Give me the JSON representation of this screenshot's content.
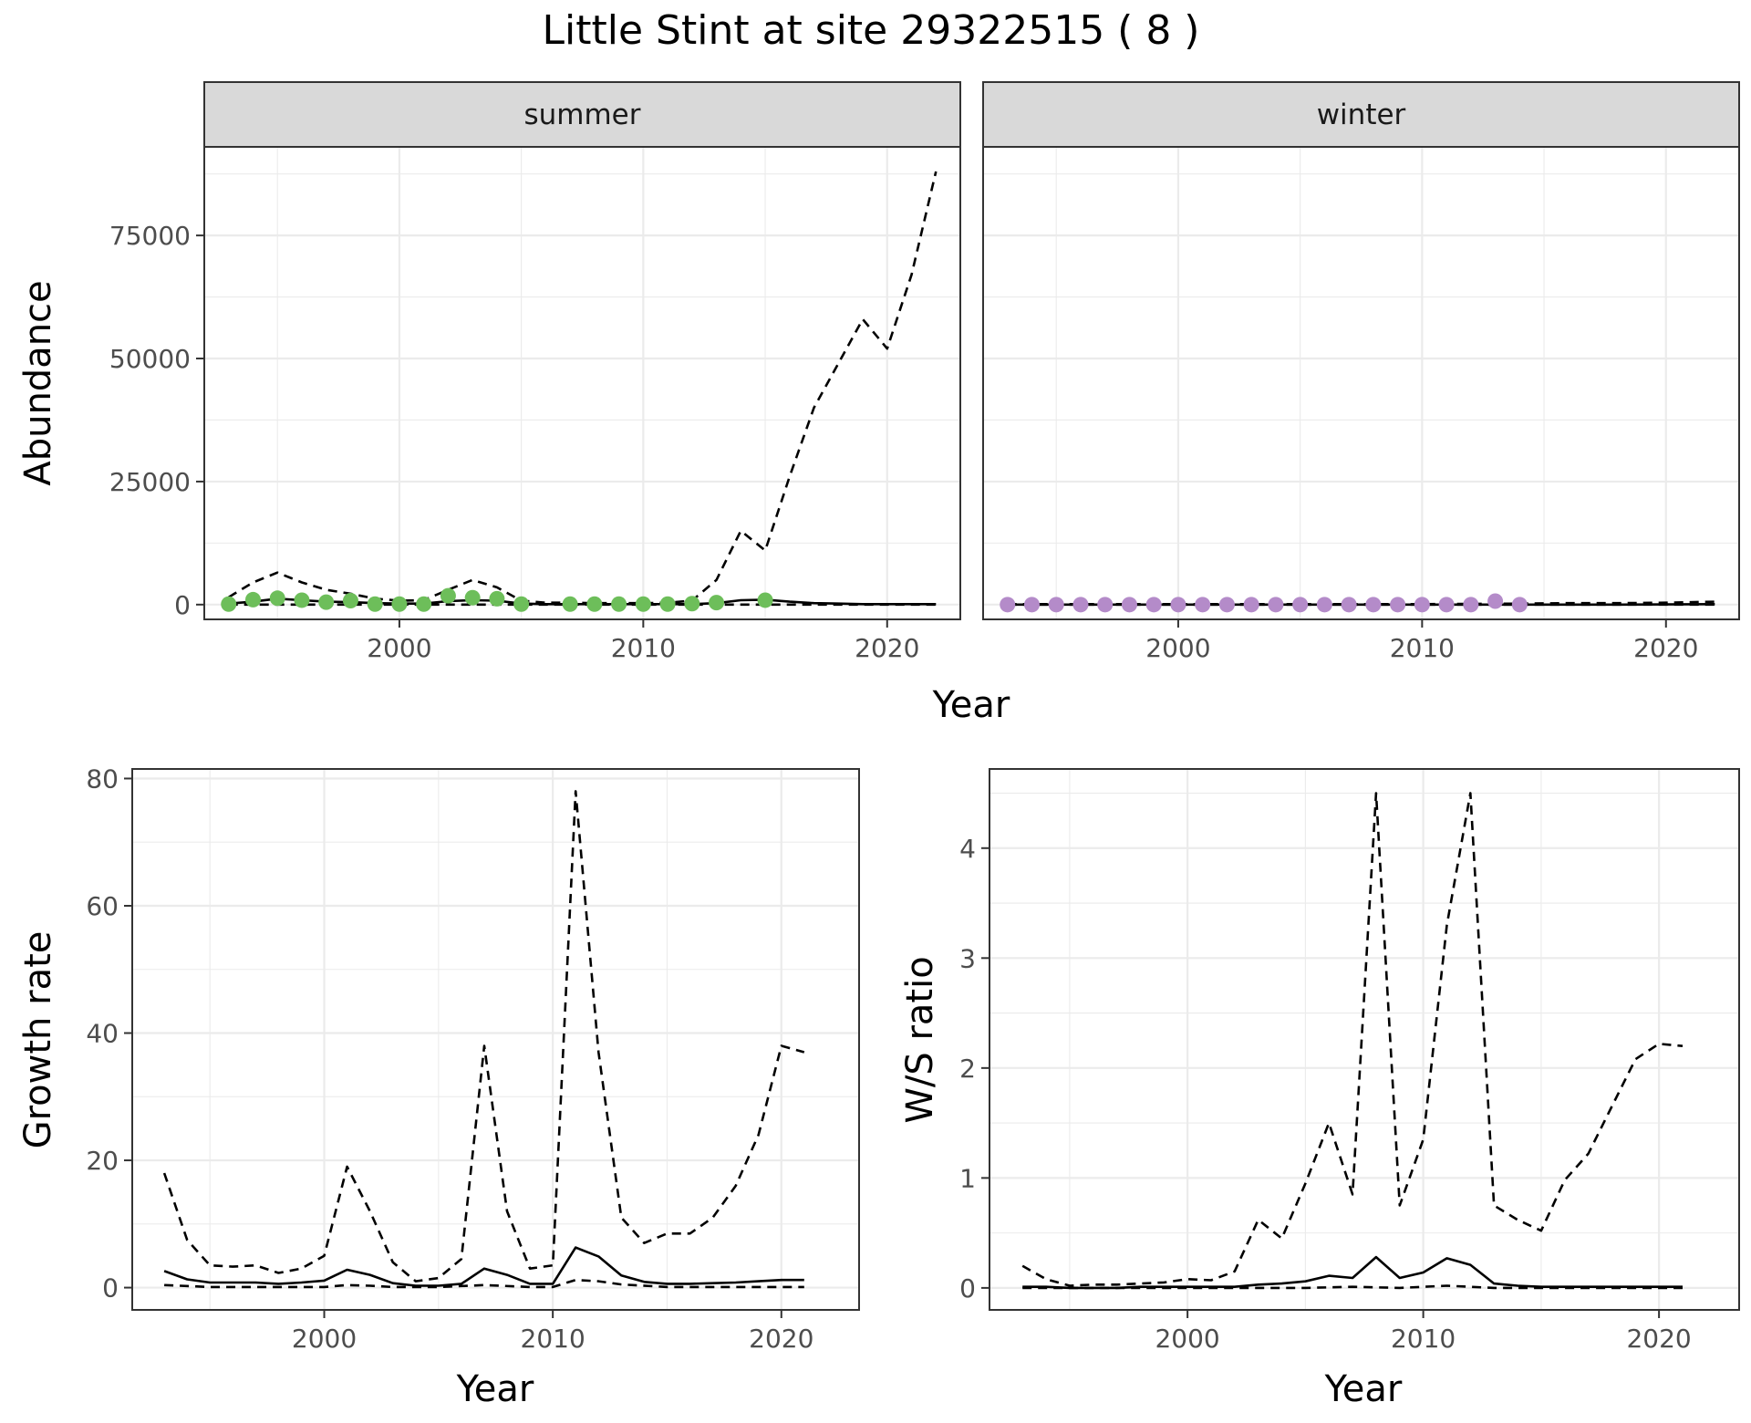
{
  "title": "Little Stint at site 29322515 ( 8 )",
  "colors": {
    "summer_points": "#6DBE5A",
    "winter_points": "#B48BC9",
    "lines": "#000000"
  },
  "chart_data": [
    {
      "id": "abundance",
      "type": "line",
      "facets": [
        "summer",
        "winter"
      ],
      "xlabel": "Year",
      "ylabel": "Abundance",
      "xlim": [
        1992,
        2023
      ],
      "ylim": [
        -3000,
        93000
      ],
      "x_ticks": [
        2000,
        2010,
        2020
      ],
      "x_tick_labels": [
        "2000",
        "2010",
        "2020"
      ],
      "y_ticks": [
        0,
        25000,
        50000,
        75000
      ],
      "y_tick_labels": [
        "0",
        "25000",
        "50000",
        "75000"
      ],
      "panels": {
        "summer": {
          "estimate": {
            "x": [
              1993,
              1994,
              1995,
              1996,
              1997,
              1998,
              1999,
              2000,
              2001,
              2002,
              2003,
              2004,
              2005,
              2006,
              2007,
              2008,
              2009,
              2010,
              2011,
              2012,
              2013,
              2014,
              2015,
              2016,
              2017,
              2018,
              2019,
              2020,
              2021,
              2022
            ],
            "y": [
              200,
              600,
              1200,
              900,
              600,
              500,
              300,
              200,
              200,
              700,
              900,
              800,
              200,
              100,
              100,
              100,
              100,
              100,
              100,
              100,
              300,
              900,
              1000,
              600,
              300,
              200,
              100,
              100,
              100,
              100
            ]
          },
          "upper": {
            "x": [
              1993,
              1994,
              1995,
              1996,
              1997,
              1998,
              1999,
              2000,
              2001,
              2002,
              2003,
              2004,
              2005,
              2006,
              2007,
              2008,
              2009,
              2010,
              2011,
              2012,
              2013,
              2014,
              2015,
              2016,
              2017,
              2018,
              2019,
              2020,
              2021,
              2022
            ],
            "y": [
              1500,
              4500,
              6500,
              4500,
              3000,
              2200,
              1200,
              800,
              900,
              3000,
              5000,
              3500,
              800,
              400,
              400,
              300,
              300,
              300,
              400,
              800,
              5000,
              15000,
              11000,
              26000,
              40000,
              49000,
              58000,
              52000,
              67000,
              88000
            ]
          },
          "lower": {
            "x": [
              1993,
              1998,
              2003,
              2008,
              2013,
              2018,
              2022
            ],
            "y": [
              0,
              0,
              0,
              0,
              0,
              0,
              0
            ]
          },
          "observed": {
            "x": [
              1993,
              1994,
              1995,
              1996,
              1997,
              1998,
              1999,
              2000,
              2001,
              2002,
              2003,
              2004,
              2005,
              2007,
              2008,
              2009,
              2010,
              2011,
              2012,
              2013,
              2015
            ],
            "y": [
              100,
              1000,
              1300,
              900,
              500,
              800,
              100,
              100,
              100,
              1800,
              1400,
              1200,
              100,
              100,
              100,
              100,
              100,
              100,
              200,
              400,
              900
            ]
          }
        },
        "winter": {
          "estimate": {
            "x": [
              1993,
              1998,
              2003,
              2008,
              2013,
              2018,
              2022
            ],
            "y": [
              0,
              0,
              0,
              0,
              0,
              0,
              100
            ]
          },
          "upper": {
            "x": [
              1993,
              2000,
              2005,
              2010,
              2014,
              2016,
              2018,
              2020,
              2022
            ],
            "y": [
              100,
              100,
              100,
              100,
              200,
              300,
              300,
              400,
              600
            ]
          },
          "lower": {
            "x": [
              1993,
              2022
            ],
            "y": [
              0,
              0
            ]
          },
          "observed": {
            "x": [
              1993,
              1994,
              1995,
              1996,
              1997,
              1998,
              1999,
              2000,
              2001,
              2002,
              2003,
              2004,
              2005,
              2006,
              2007,
              2008,
              2009,
              2010,
              2011,
              2012,
              2013,
              2014
            ],
            "y": [
              0,
              0,
              0,
              0,
              0,
              0,
              0,
              0,
              0,
              0,
              0,
              0,
              0,
              0,
              0,
              0,
              0,
              0,
              0,
              0,
              700,
              0
            ]
          }
        }
      }
    },
    {
      "id": "growth",
      "type": "line",
      "xlabel": "Year",
      "ylabel": "Growth rate",
      "xlim": [
        1991.6,
        2023.4
      ],
      "ylim": [
        -3.5,
        81.5
      ],
      "x_ticks": [
        2000,
        2010,
        2020
      ],
      "x_tick_labels": [
        "2000",
        "2010",
        "2020"
      ],
      "y_ticks": [
        0,
        20,
        40,
        60,
        80
      ],
      "y_tick_labels": [
        "0",
        "20",
        "40",
        "60",
        "80"
      ],
      "estimate": {
        "x": [
          1993,
          1994,
          1995,
          1996,
          1997,
          1998,
          1999,
          2000,
          2001,
          2002,
          2003,
          2004,
          2005,
          2006,
          2007,
          2008,
          2009,
          2010,
          2011,
          2012,
          2013,
          2014,
          2015,
          2016,
          2017,
          2018,
          2019,
          2020,
          2021
        ],
        "y": [
          2.6,
          1.3,
          0.8,
          0.8,
          0.8,
          0.6,
          0.8,
          1.1,
          2.8,
          2.0,
          0.7,
          0.3,
          0.3,
          0.6,
          3.0,
          2.0,
          0.6,
          0.6,
          6.3,
          4.9,
          1.9,
          0.9,
          0.6,
          0.6,
          0.7,
          0.8,
          1.0,
          1.2,
          1.2
        ]
      },
      "upper": {
        "x": [
          1993,
          1994,
          1995,
          1996,
          1997,
          1998,
          1999,
          2000,
          2001,
          2002,
          2003,
          2004,
          2005,
          2006,
          2007,
          2008,
          2009,
          2010,
          2011,
          2012,
          2013,
          2014,
          2015,
          2016,
          2017,
          2018,
          2019,
          2020,
          2021
        ],
        "y": [
          18,
          7.5,
          3.5,
          3.3,
          3.5,
          2.3,
          3,
          5,
          19,
          12,
          4,
          1,
          1.5,
          4.5,
          38,
          12,
          3,
          3.5,
          78,
          37,
          11,
          7,
          8.5,
          8.5,
          11,
          16,
          24,
          38,
          37
        ]
      },
      "lower": {
        "x": [
          1993,
          1995,
          1997,
          1999,
          2000,
          2001,
          2002,
          2003,
          2005,
          2007,
          2009,
          2010,
          2011,
          2012,
          2013,
          2015,
          2017,
          2019,
          2021
        ],
        "y": [
          0.4,
          0.1,
          0.1,
          0.1,
          0.1,
          0.4,
          0.3,
          0.1,
          0.1,
          0.4,
          0.1,
          0.1,
          1.2,
          1.0,
          0.5,
          0.1,
          0.1,
          0.1,
          0.1
        ]
      }
    },
    {
      "id": "ws_ratio",
      "type": "line",
      "xlabel": "Year",
      "ylabel": "W/S ratio",
      "xlim": [
        1991.6,
        2023.4
      ],
      "ylim": [
        -0.2,
        4.72
      ],
      "x_ticks": [
        2000,
        2010,
        2020
      ],
      "x_tick_labels": [
        "2000",
        "2010",
        "2020"
      ],
      "y_ticks": [
        0,
        1,
        2,
        3,
        4
      ],
      "y_tick_labels": [
        "0",
        "1",
        "2",
        "3",
        "4"
      ],
      "estimate": {
        "x": [
          1993,
          1994,
          1995,
          1996,
          1997,
          1998,
          1999,
          2000,
          2001,
          2002,
          2003,
          2004,
          2005,
          2006,
          2007,
          2008,
          2009,
          2010,
          2011,
          2012,
          2013,
          2014,
          2015,
          2016,
          2017,
          2018,
          2019,
          2020,
          2021
        ],
        "y": [
          0.01,
          0.01,
          0.0,
          0.0,
          0.0,
          0.01,
          0.01,
          0.01,
          0.01,
          0.01,
          0.03,
          0.04,
          0.06,
          0.11,
          0.09,
          0.28,
          0.09,
          0.14,
          0.27,
          0.21,
          0.04,
          0.02,
          0.01,
          0.01,
          0.01,
          0.01,
          0.01,
          0.01,
          0.01
        ]
      },
      "upper": {
        "x": [
          1993,
          1994,
          1995,
          1996,
          1997,
          1998,
          1999,
          2000,
          2001,
          2002,
          2003,
          2004,
          2005,
          2006,
          2007,
          2008,
          2009,
          2010,
          2011,
          2012,
          2013,
          2014,
          2015,
          2016,
          2017,
          2018,
          2019,
          2020,
          2021
        ],
        "y": [
          0.2,
          0.08,
          0.02,
          0.03,
          0.03,
          0.04,
          0.05,
          0.08,
          0.07,
          0.15,
          0.62,
          0.45,
          0.95,
          1.5,
          0.85,
          4.5,
          0.75,
          1.35,
          3.3,
          4.5,
          0.75,
          0.62,
          0.52,
          0.98,
          1.22,
          1.65,
          2.08,
          2.22,
          2.2
        ]
      },
      "lower": {
        "x": [
          1993,
          1995,
          2000,
          2005,
          2007,
          2009,
          2011,
          2013,
          2015,
          2021
        ],
        "y": [
          0,
          0,
          0,
          0,
          0.01,
          0.0,
          0.02,
          0.0,
          0.0,
          0.0
        ]
      }
    }
  ]
}
